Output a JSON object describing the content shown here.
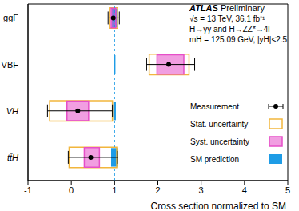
{
  "chart_data": {
    "type": "interval",
    "categories": [
      "ggF",
      "VBF",
      "VH",
      "tt̄H"
    ],
    "values": [
      0.97,
      2.25,
      0.15,
      0.45
    ],
    "total_error_low": [
      0.12,
      0.51,
      0.7,
      0.52
    ],
    "total_error_high": [
      0.14,
      0.6,
      0.8,
      0.62
    ],
    "stat_error_low": [
      0.09,
      0.45,
      0.65,
      0.5
    ],
    "stat_error_high": [
      0.1,
      0.47,
      0.8,
      0.6
    ],
    "syst_error_low": [
      0.05,
      0.27,
      0.25,
      0.15
    ],
    "syst_error_high": [
      0.06,
      0.35,
      0.25,
      0.2
    ],
    "sm_prediction": [
      1,
      1,
      1,
      1
    ],
    "sm_uncertainty": [
      0.06,
      0.02,
      0.03,
      0.08
    ],
    "series": [
      {
        "name": "Measurement",
        "color": "#000000"
      },
      {
        "name": "Stat. uncertainty",
        "color": "#f2b63c"
      },
      {
        "name": "Syst. uncertainty",
        "color": "#e64fc8"
      },
      {
        "name": "SM prediction",
        "color": "#1e9ce6"
      }
    ],
    "xlabel": "Cross section normalized to SM",
    "xlim": [
      -1,
      5
    ],
    "xticks": [
      -1,
      0,
      1,
      2,
      3,
      4,
      5
    ],
    "legend": "right",
    "annotations": [
      "ATLAS Preliminary",
      "√s = 13 TeV, 36.1 fb⁻¹",
      "H→γγ and H→ZZ*→4l",
      "mH = 125.09 GeV, |yH|<2.5"
    ]
  }
}
